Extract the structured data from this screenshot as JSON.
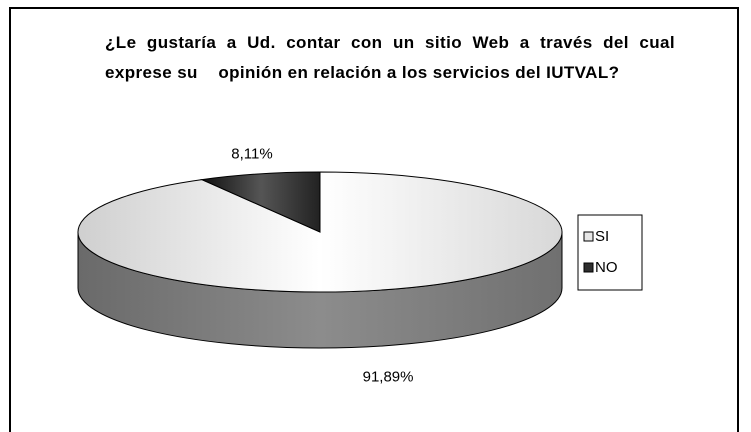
{
  "chart_data": {
    "type": "pie",
    "title": "¿Le gustaría a Ud. contar con un sitio Web a través del cual exprese su    opinión en relación a los servicios del IUTVAL?",
    "categories": [
      "SI",
      "NO"
    ],
    "values": [
      91.89,
      8.11
    ],
    "value_labels": [
      "91,89%",
      "8,11%"
    ],
    "colors": [
      "#e6e6e6",
      "#2e2e2e"
    ],
    "legend": "right",
    "three_d": true
  }
}
